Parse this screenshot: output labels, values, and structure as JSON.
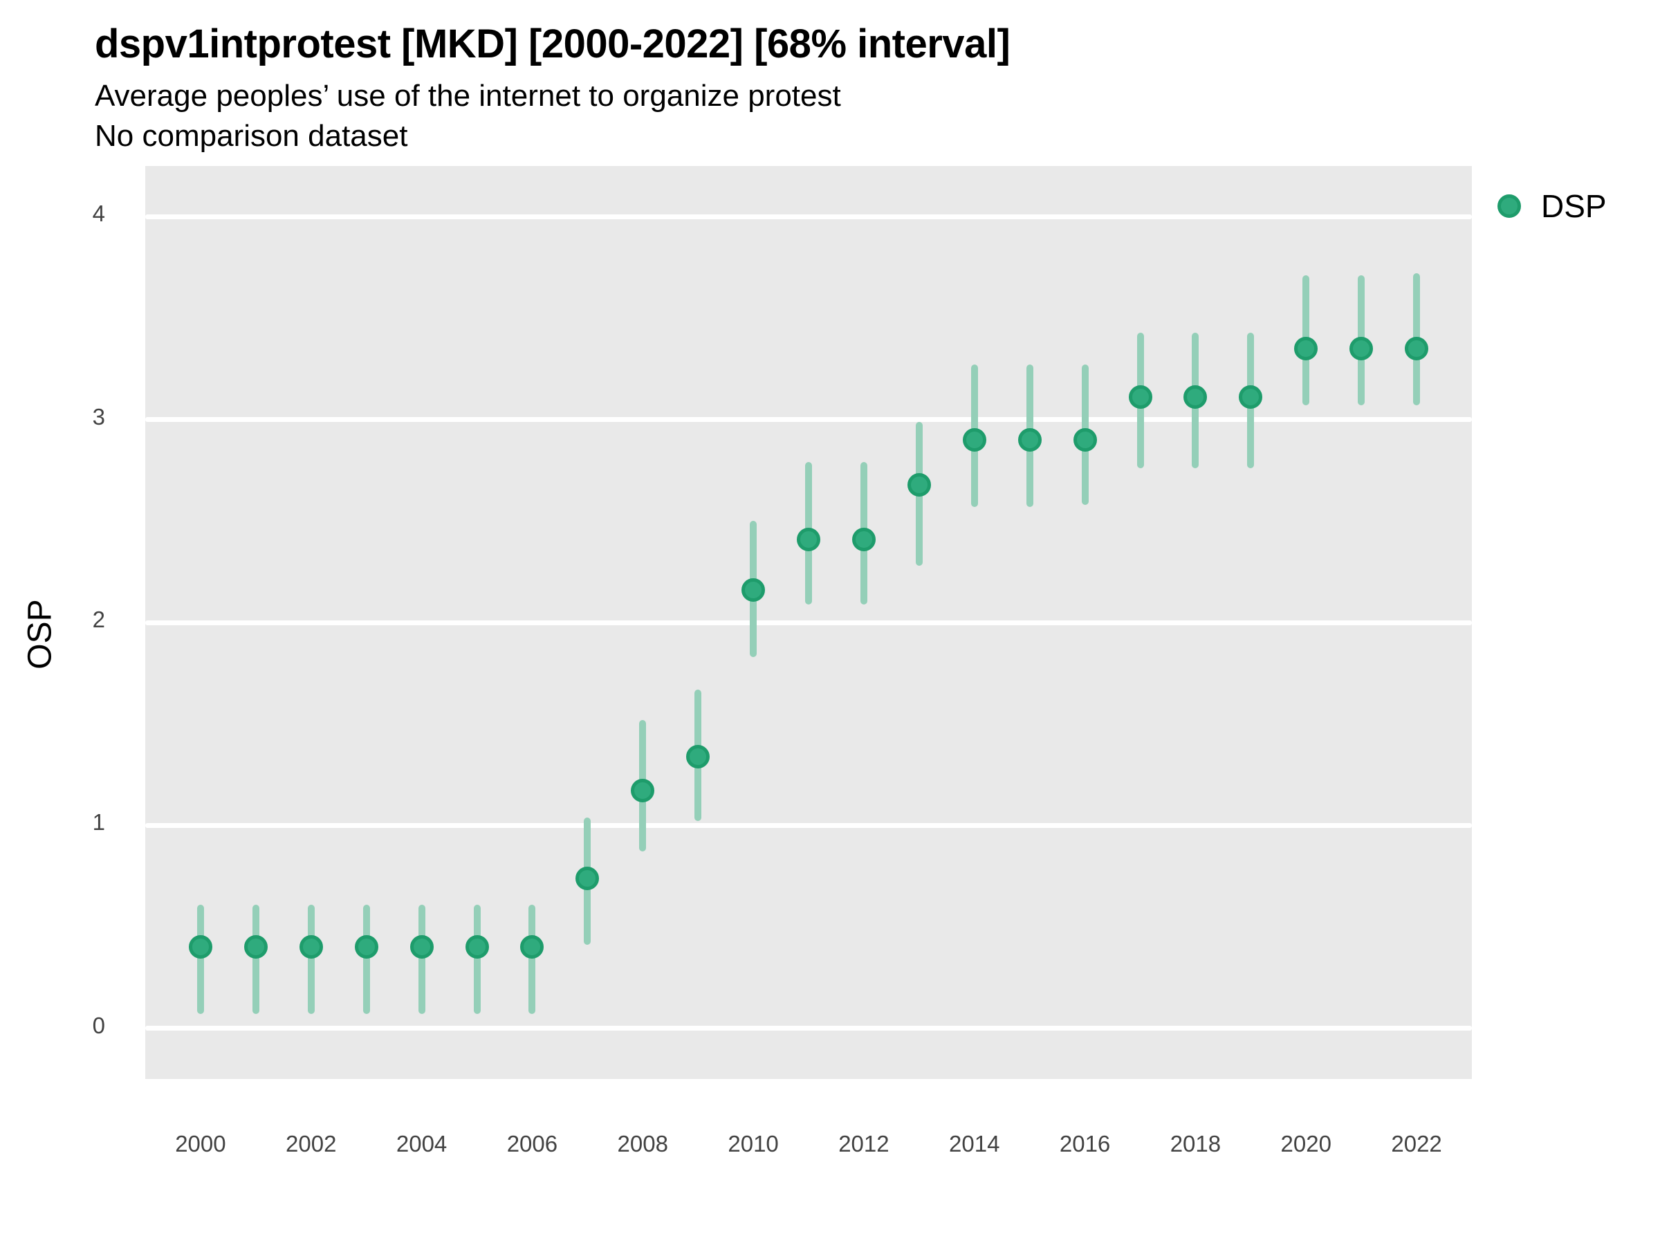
{
  "chart_data": {
    "type": "scatter",
    "title": "dspv1intprotest [MKD] [2000-2022] [68% interval]",
    "subtitle": "Average peoples’ use of the internet to organize protest",
    "note": "No comparison dataset",
    "xlabel": "",
    "ylabel": "OSP",
    "xlim": [
      1999,
      2023
    ],
    "ylim": [
      -0.25,
      4.25
    ],
    "y_ticks": [
      0,
      1,
      2,
      3,
      4
    ],
    "x_ticks": [
      2000,
      2002,
      2004,
      2006,
      2008,
      2010,
      2012,
      2014,
      2016,
      2018,
      2020,
      2022
    ],
    "grid": "horizontal-only",
    "legend_position": "right",
    "interval": "68%",
    "series": [
      {
        "name": "DSP",
        "points": [
          {
            "year": 2000,
            "value": 0.4,
            "lo": 0.07,
            "hi": 0.61
          },
          {
            "year": 2001,
            "value": 0.4,
            "lo": 0.07,
            "hi": 0.61
          },
          {
            "year": 2002,
            "value": 0.4,
            "lo": 0.07,
            "hi": 0.61
          },
          {
            "year": 2003,
            "value": 0.4,
            "lo": 0.07,
            "hi": 0.61
          },
          {
            "year": 2004,
            "value": 0.4,
            "lo": 0.07,
            "hi": 0.61
          },
          {
            "year": 2005,
            "value": 0.4,
            "lo": 0.07,
            "hi": 0.61
          },
          {
            "year": 2006,
            "value": 0.4,
            "lo": 0.07,
            "hi": 0.61
          },
          {
            "year": 2007,
            "value": 0.74,
            "lo": 0.41,
            "hi": 1.04
          },
          {
            "year": 2008,
            "value": 1.17,
            "lo": 0.87,
            "hi": 1.52
          },
          {
            "year": 2009,
            "value": 1.34,
            "lo": 1.02,
            "hi": 1.67
          },
          {
            "year": 2010,
            "value": 2.16,
            "lo": 1.83,
            "hi": 2.5
          },
          {
            "year": 2011,
            "value": 2.41,
            "lo": 2.09,
            "hi": 2.79
          },
          {
            "year": 2012,
            "value": 2.41,
            "lo": 2.09,
            "hi": 2.79
          },
          {
            "year": 2013,
            "value": 2.68,
            "lo": 2.28,
            "hi": 2.99
          },
          {
            "year": 2014,
            "value": 2.9,
            "lo": 2.57,
            "hi": 3.27
          },
          {
            "year": 2015,
            "value": 2.9,
            "lo": 2.57,
            "hi": 3.27
          },
          {
            "year": 2016,
            "value": 2.9,
            "lo": 2.58,
            "hi": 3.27
          },
          {
            "year": 2017,
            "value": 3.11,
            "lo": 2.76,
            "hi": 3.43
          },
          {
            "year": 2018,
            "value": 3.11,
            "lo": 2.76,
            "hi": 3.43
          },
          {
            "year": 2019,
            "value": 3.11,
            "lo": 2.76,
            "hi": 3.43
          },
          {
            "year": 2020,
            "value": 3.35,
            "lo": 3.07,
            "hi": 3.71
          },
          {
            "year": 2021,
            "value": 3.35,
            "lo": 3.07,
            "hi": 3.71
          },
          {
            "year": 2022,
            "value": 3.35,
            "lo": 3.07,
            "hi": 3.72
          }
        ]
      }
    ]
  },
  "colors": {
    "panel_bg": "#E9E9E9",
    "gridline": "#FFFFFF",
    "point_fill": "#2FAB7D",
    "point_stroke": "#1E9C6B",
    "error_bar": "#94CFB8",
    "tick_text": "#424242",
    "text": "#000000"
  }
}
